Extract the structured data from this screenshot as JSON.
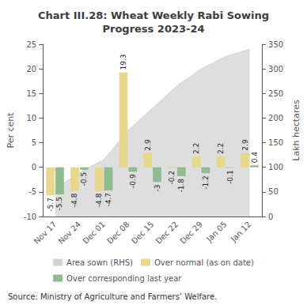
{
  "chart_data": {
    "type": "bar",
    "title": "Chart III.28: Wheat Weekly Rabi Sowing\nProgress 2023-24",
    "categories": [
      "Nov 17",
      "Nov 24",
      "Dec 01",
      "Dec 08",
      "Dec 15",
      "Dec 22",
      "Dec 29",
      "Jan 05",
      "Jan 12"
    ],
    "series": [
      {
        "name": "Area sown (RHS)",
        "type": "area",
        "axis": "y2",
        "color": "#d3d3d3",
        "values": [
          55,
          90,
          115,
          175,
          220,
          265,
          300,
          325,
          340
        ]
      },
      {
        "name": "Over normal (as on date)",
        "type": "bar",
        "color": "#e8d88a",
        "data_labels": true,
        "values": [
          -5.7,
          -4.8,
          -4.8,
          19.3,
          2.9,
          -0.2,
          2.2,
          2.2,
          2.9
        ]
      },
      {
        "name": "Over corresponding last year",
        "type": "bar",
        "color": "#8fbc8f",
        "data_labels": true,
        "values": [
          -5.5,
          -0.5,
          -4.7,
          -0.9,
          -3.0,
          -1.8,
          -1.2,
          -0.1,
          0.4
        ]
      }
    ],
    "ylabel": "Per cent",
    "y2label": "Lakh hectares",
    "ylim": [
      -10,
      25
    ],
    "yticks": [
      -10,
      -5,
      0,
      5,
      10,
      15,
      20,
      25
    ],
    "y2lim": [
      0,
      350
    ],
    "y2ticks": [
      0,
      50,
      100,
      150,
      200,
      250,
      300,
      350
    ],
    "grid": false,
    "legend": "bottom",
    "annotations": [
      "Source: Ministry of Agriculture and Farmers’ Welfare."
    ]
  }
}
